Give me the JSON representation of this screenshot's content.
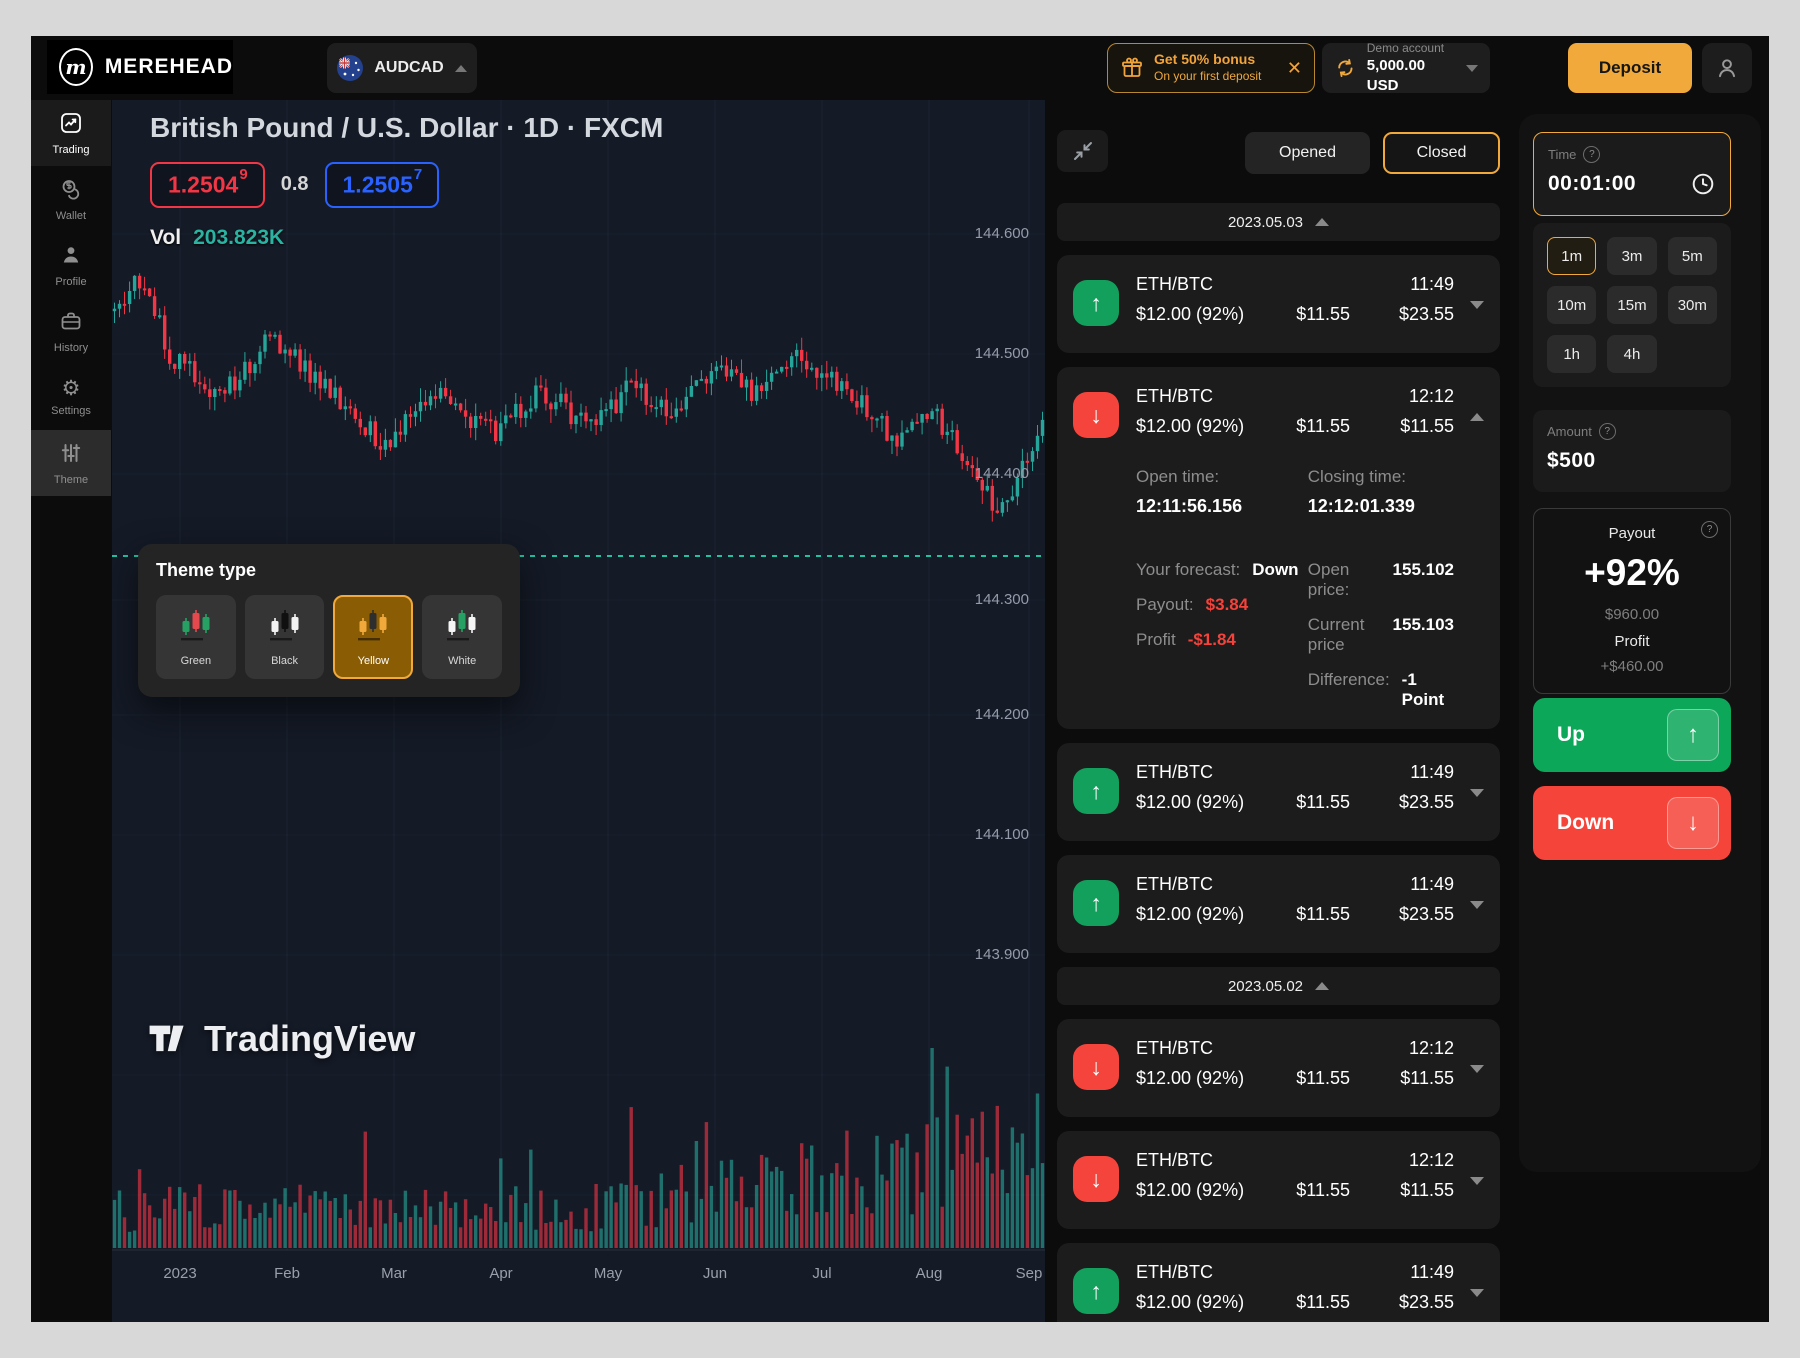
{
  "header": {
    "brand": "MEREHEAD",
    "pair": "AUDCAD",
    "bonus": {
      "title": "Get 50% bonus",
      "subtitle": "On your first deposit"
    },
    "account": {
      "label": "Demo account",
      "balance": "5,000.00 USD"
    },
    "deposit_label": "Deposit"
  },
  "sidebar": {
    "items": [
      {
        "id": "trading",
        "label": "Trading",
        "state": "active"
      },
      {
        "id": "wallet",
        "label": "Wallet",
        "state": ""
      },
      {
        "id": "profile",
        "label": "Profile",
        "state": ""
      },
      {
        "id": "history",
        "label": "History",
        "state": ""
      },
      {
        "id": "settings",
        "label": "Settings",
        "state": ""
      },
      {
        "id": "theme",
        "label": "Theme",
        "state": "open"
      }
    ]
  },
  "chart": {
    "title": "British Pound / U.S. Dollar · 1D · FXCM",
    "bid_main": "1.2504",
    "bid_sup": "9",
    "spread": "0.8",
    "ask_main": "1.2505",
    "ask_sup": "7",
    "vol_label": "Vol",
    "vol_value": "203.823K",
    "y_labels": [
      "144.600",
      "144.500",
      "144.400",
      "144.300",
      "144.200",
      "144.100",
      "143.900"
    ],
    "x_labels": [
      "2023",
      "Feb",
      "Mar",
      "Apr",
      "May",
      "Jun",
      "Jul",
      "Aug",
      "Sep"
    ],
    "watermark": "TradingView",
    "colors": {
      "up": "#26a69a",
      "down": "#f23645",
      "dotted_line": "#1fc3a2"
    }
  },
  "theme_popup": {
    "title": "Theme type",
    "options": [
      {
        "label": "Green",
        "active": false
      },
      {
        "label": "Black",
        "active": false
      },
      {
        "label": "Yellow",
        "active": true
      },
      {
        "label": "White",
        "active": false
      }
    ]
  },
  "trades": {
    "tabs": [
      {
        "label": "Opened",
        "active": false
      },
      {
        "label": "Closed",
        "active": true
      }
    ],
    "sections": [
      {
        "date": "2023.05.03",
        "rows": [
          {
            "dir": "up",
            "pair": "ETH/BTC",
            "time": "11:49",
            "stake": "$12.00 (92%)",
            "mid": "$11.55",
            "result": "$23.55",
            "expanded": false
          },
          {
            "dir": "down",
            "pair": "ETH/BTC",
            "time": "12:12",
            "stake": "$12.00 (92%)",
            "mid": "$11.55",
            "result": "$11.55",
            "expanded": true,
            "details": {
              "open_time_label": "Open time:",
              "open_time": "12:11:56.156",
              "closing_time_label": "Closing time:",
              "closing_time": "12:12:01.339",
              "forecast_label": "Your forecast:",
              "forecast": "Down",
              "open_price_label": "Open price:",
              "open_price": "155.102",
              "payout_label": "Payout:",
              "payout": "$3.84",
              "current_price_label": "Current price",
              "current_price": "155.103",
              "profit_label": "Profit",
              "profit": "-$1.84",
              "difference_label": "Difference:",
              "difference": "-1 Point"
            }
          },
          {
            "dir": "up",
            "pair": "ETH/BTC",
            "time": "11:49",
            "stake": "$12.00 (92%)",
            "mid": "$11.55",
            "result": "$23.55",
            "expanded": false
          },
          {
            "dir": "up",
            "pair": "ETH/BTC",
            "time": "11:49",
            "stake": "$12.00 (92%)",
            "mid": "$11.55",
            "result": "$23.55",
            "expanded": false
          }
        ]
      },
      {
        "date": "2023.05.02",
        "rows": [
          {
            "dir": "down",
            "pair": "ETH/BTC",
            "time": "12:12",
            "stake": "$12.00 (92%)",
            "mid": "$11.55",
            "result": "$11.55",
            "expanded": false
          },
          {
            "dir": "down",
            "pair": "ETH/BTC",
            "time": "12:12",
            "stake": "$12.00 (92%)",
            "mid": "$11.55",
            "result": "$11.55",
            "expanded": false
          },
          {
            "dir": "up",
            "pair": "ETH/BTC",
            "time": "11:49",
            "stake": "$12.00 (92%)",
            "mid": "$11.55",
            "result": "$23.55",
            "expanded": false
          }
        ]
      }
    ]
  },
  "order_panel": {
    "time_label": "Time",
    "time_value": "00:01:00",
    "presets": [
      {
        "label": "1m",
        "active": true
      },
      {
        "label": "3m",
        "active": false
      },
      {
        "label": "5m",
        "active": false
      },
      {
        "label": "10m",
        "active": false
      },
      {
        "label": "15m",
        "active": false
      },
      {
        "label": "30m",
        "active": false
      },
      {
        "label": "1h",
        "active": false
      },
      {
        "label": "4h",
        "active": false
      }
    ],
    "amount_label": "Amount",
    "amount_value": "$500",
    "payout": {
      "label": "Payout",
      "percent": "+92%",
      "amount": "$960.00",
      "profit_label": "Profit",
      "profit_value": "+$460.00"
    },
    "up_label": "Up",
    "down_label": "Down"
  }
}
